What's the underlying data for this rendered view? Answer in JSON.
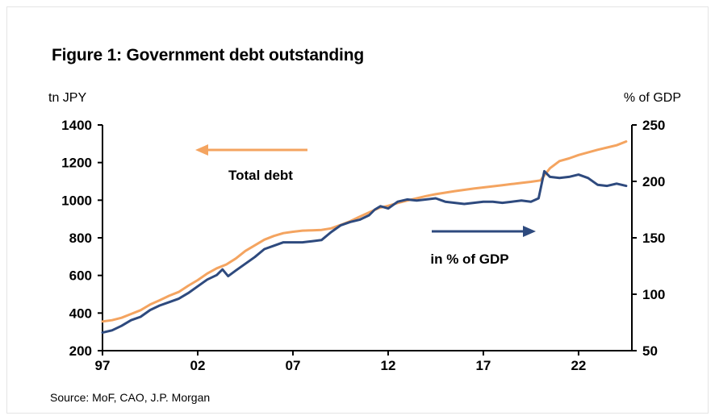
{
  "title": "Figure 1: Government debt outstanding",
  "source": "Source: MoF, CAO, J.P. Morgan",
  "colors": {
    "total_debt": "#F4A460",
    "pct_gdp": "#2E4A7E"
  },
  "chart_data": {
    "type": "line",
    "x_tick_labels": [
      "97",
      "02",
      "07",
      "12",
      "17",
      "22"
    ],
    "x_ticks": [
      1997,
      2002,
      2007,
      2012,
      2017,
      2022
    ],
    "xlim": [
      1997,
      2024.8
    ],
    "left_axis": {
      "label": "tn JPY",
      "ylim": [
        200,
        1400
      ],
      "ticks": [
        200,
        400,
        600,
        800,
        1000,
        1200,
        1400
      ]
    },
    "right_axis": {
      "label": "% of GDP",
      "ylim": [
        50,
        250
      ],
      "ticks": [
        50,
        100,
        150,
        200,
        250
      ]
    },
    "annotations": [
      {
        "text": "Total debt",
        "arrow": "left"
      },
      {
        "text": "in % of GDP",
        "arrow": "right"
      }
    ],
    "series": [
      {
        "key": "total_debt",
        "axis": "left",
        "x": [
          1997,
          1997.5,
          1998,
          1998.5,
          1999,
          1999.5,
          2000,
          2000.5,
          2001,
          2001.5,
          2002,
          2002.5,
          2003,
          2003.5,
          2004,
          2004.5,
          2005,
          2005.5,
          2006,
          2006.5,
          2007,
          2007.5,
          2008,
          2008.5,
          2009,
          2009.5,
          2010,
          2010.5,
          2011,
          2011.5,
          2012,
          2012.5,
          2013,
          2013.5,
          2014,
          2014.5,
          2015,
          2015.5,
          2016,
          2016.5,
          2017,
          2017.5,
          2018,
          2018.5,
          2019,
          2019.5,
          2020,
          2020.5,
          2021,
          2021.5,
          2022,
          2022.5,
          2023,
          2023.5,
          2024,
          2024.5
        ],
        "values": [
          355,
          362,
          375,
          395,
          415,
          445,
          468,
          492,
          512,
          545,
          575,
          610,
          638,
          658,
          690,
          730,
          760,
          790,
          810,
          825,
          832,
          838,
          840,
          842,
          850,
          868,
          888,
          912,
          935,
          958,
          970,
          985,
          998,
          1010,
          1022,
          1032,
          1040,
          1048,
          1055,
          1062,
          1068,
          1074,
          1080,
          1086,
          1092,
          1098,
          1105,
          1170,
          1208,
          1222,
          1240,
          1254,
          1268,
          1280,
          1292,
          1312
        ]
      },
      {
        "key": "pct_gdp",
        "axis": "right",
        "x": [
          1997,
          1997.5,
          1998,
          1998.5,
          1999,
          1999.5,
          2000,
          2000.5,
          2001,
          2001.5,
          2002,
          2002.5,
          2003,
          2003.3,
          2003.6,
          2004,
          2004.5,
          2005,
          2005.5,
          2006,
          2006.5,
          2007,
          2007.5,
          2008,
          2008.5,
          2009,
          2009.5,
          2010,
          2010.5,
          2011,
          2011.3,
          2011.6,
          2012,
          2012.5,
          2013,
          2013.5,
          2014,
          2014.5,
          2015,
          2015.5,
          2016,
          2016.5,
          2017,
          2017.5,
          2018,
          2018.5,
          2019,
          2019.5,
          2019.9,
          2020.2,
          2020.5,
          2021,
          2021.5,
          2022,
          2022.5,
          2023,
          2023.5,
          2024,
          2024.5
        ],
        "values": [
          66,
          68,
          72,
          77,
          80,
          86,
          90,
          93,
          96,
          101,
          107,
          113,
          117,
          122,
          116,
          121,
          127,
          133,
          140,
          143,
          146,
          146,
          146,
          147,
          148,
          155,
          161,
          164,
          166,
          170,
          175,
          178,
          176,
          182,
          184,
          183,
          184,
          185,
          182,
          181,
          180,
          181,
          182,
          182,
          181,
          182,
          183,
          182,
          185,
          209,
          204,
          203,
          204,
          206,
          203,
          197,
          196,
          198,
          196
        ]
      }
    ]
  }
}
